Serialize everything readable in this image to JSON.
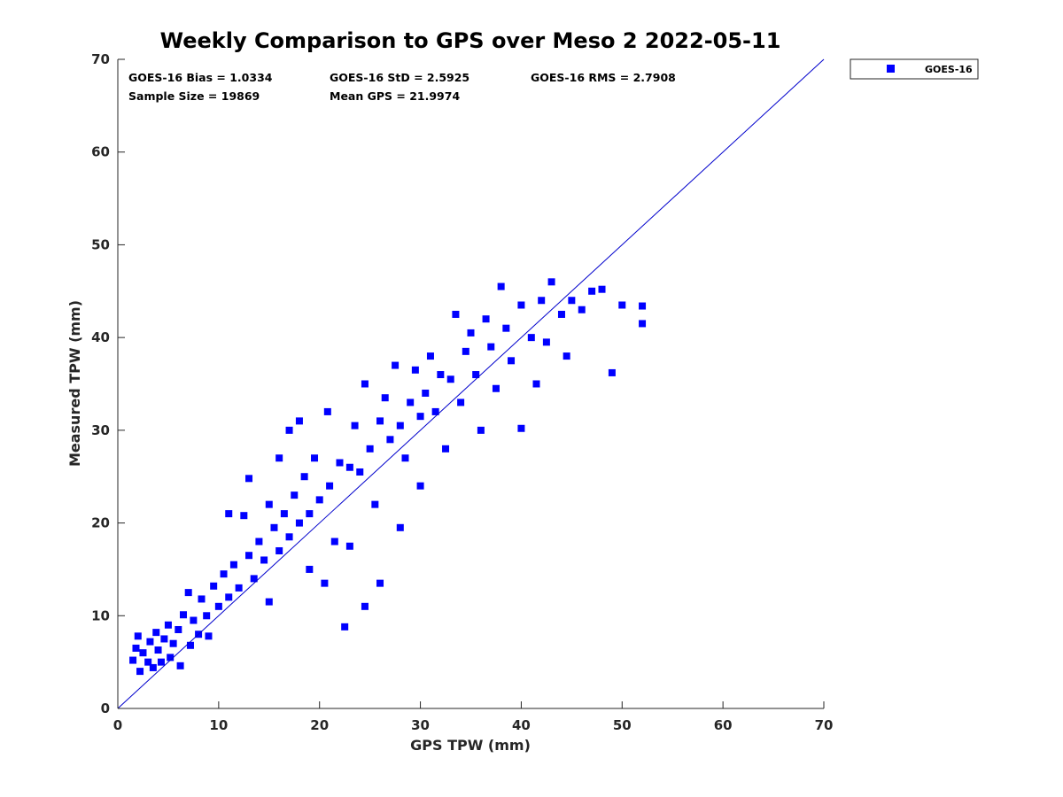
{
  "chart_data": {
    "type": "scatter",
    "title": "Weekly Comparison to GPS over Meso 2 2022-05-11",
    "xlabel": "GPS TPW (mm)",
    "ylabel": "Measured TPW (mm)",
    "xlim": [
      0,
      70
    ],
    "ylim": [
      0,
      70
    ],
    "xticks": [
      "0",
      "10",
      "20",
      "30",
      "40",
      "50",
      "60",
      "70"
    ],
    "yticks": [
      "0",
      "10",
      "20",
      "30",
      "40",
      "50",
      "60",
      "70"
    ],
    "grid": false,
    "legend_position": "top-right, outside plot area",
    "reference_line": {
      "name": "1:1 line",
      "from": [
        0,
        0
      ],
      "to": [
        70,
        70
      ],
      "color": "#0000cc"
    },
    "stats": {
      "bias": "GOES-16 Bias = 1.0334",
      "std": "GOES-16 StD = 2.5925",
      "rms": "GOES-16 RMS = 2.7908",
      "sample": "Sample Size = 19869",
      "mean": "Mean GPS = 21.9974"
    },
    "series": [
      {
        "name": "GOES-16",
        "color": "#0000ff",
        "marker": "square",
        "points": [
          [
            1.5,
            5.2
          ],
          [
            1.8,
            6.5
          ],
          [
            2.0,
            7.8
          ],
          [
            2.2,
            4.0
          ],
          [
            2.5,
            6.0
          ],
          [
            3.0,
            5.0
          ],
          [
            3.2,
            7.2
          ],
          [
            3.5,
            4.4
          ],
          [
            3.8,
            8.2
          ],
          [
            4.0,
            6.3
          ],
          [
            4.3,
            5.0
          ],
          [
            4.6,
            7.5
          ],
          [
            5.0,
            9.0
          ],
          [
            5.2,
            5.5
          ],
          [
            5.5,
            7.0
          ],
          [
            6.0,
            8.5
          ],
          [
            6.2,
            4.6
          ],
          [
            6.5,
            10.1
          ],
          [
            7.0,
            12.5
          ],
          [
            7.2,
            6.8
          ],
          [
            7.5,
            9.5
          ],
          [
            8.0,
            8.0
          ],
          [
            8.3,
            11.8
          ],
          [
            8.8,
            10.0
          ],
          [
            9.0,
            7.8
          ],
          [
            9.5,
            13.2
          ],
          [
            10.0,
            11.0
          ],
          [
            10.5,
            14.5
          ],
          [
            11.0,
            12.0
          ],
          [
            11.0,
            21.0
          ],
          [
            11.5,
            15.5
          ],
          [
            12.0,
            13.0
          ],
          [
            12.5,
            20.8
          ],
          [
            13.0,
            16.5
          ],
          [
            13.0,
            24.8
          ],
          [
            13.5,
            14.0
          ],
          [
            14.0,
            18.0
          ],
          [
            14.5,
            16.0
          ],
          [
            15.0,
            22.0
          ],
          [
            15.0,
            11.5
          ],
          [
            15.5,
            19.5
          ],
          [
            16.0,
            17.0
          ],
          [
            16.0,
            27.0
          ],
          [
            16.5,
            21.0
          ],
          [
            17.0,
            18.5
          ],
          [
            17.0,
            30.0
          ],
          [
            17.5,
            23.0
          ],
          [
            18.0,
            20.0
          ],
          [
            18.0,
            31.0
          ],
          [
            18.5,
            25.0
          ],
          [
            19.0,
            21.0
          ],
          [
            19.0,
            15.0
          ],
          [
            19.5,
            27.0
          ],
          [
            20.0,
            22.5
          ],
          [
            20.5,
            13.5
          ],
          [
            20.8,
            32.0
          ],
          [
            21.0,
            24.0
          ],
          [
            21.5,
            18.0
          ],
          [
            22.0,
            26.5
          ],
          [
            22.5,
            8.8
          ],
          [
            23.0,
            26.0
          ],
          [
            23.0,
            17.5
          ],
          [
            23.5,
            30.5
          ],
          [
            24.0,
            25.5
          ],
          [
            24.5,
            35.0
          ],
          [
            24.5,
            11.0
          ],
          [
            25.0,
            28.0
          ],
          [
            25.5,
            22.0
          ],
          [
            26.0,
            31.0
          ],
          [
            26.0,
            13.5
          ],
          [
            26.5,
            33.5
          ],
          [
            27.0,
            29.0
          ],
          [
            27.5,
            37.0
          ],
          [
            28.0,
            30.5
          ],
          [
            28.0,
            19.5
          ],
          [
            28.5,
            27.0
          ],
          [
            29.0,
            33.0
          ],
          [
            29.5,
            36.5
          ],
          [
            30.0,
            31.5
          ],
          [
            30.0,
            24.0
          ],
          [
            30.5,
            34.0
          ],
          [
            31.0,
            38.0
          ],
          [
            31.5,
            32.0
          ],
          [
            32.0,
            36.0
          ],
          [
            32.5,
            28.0
          ],
          [
            33.0,
            35.5
          ],
          [
            33.5,
            42.5
          ],
          [
            34.0,
            33.0
          ],
          [
            34.5,
            38.5
          ],
          [
            35.0,
            40.5
          ],
          [
            35.5,
            36.0
          ],
          [
            36.0,
            30.0
          ],
          [
            36.5,
            42.0
          ],
          [
            37.0,
            39.0
          ],
          [
            37.5,
            34.5
          ],
          [
            38.0,
            45.5
          ],
          [
            38.5,
            41.0
          ],
          [
            39.0,
            37.5
          ],
          [
            40.0,
            43.5
          ],
          [
            40.0,
            30.2
          ],
          [
            41.0,
            40.0
          ],
          [
            41.5,
            35.0
          ],
          [
            42.0,
            44.0
          ],
          [
            42.5,
            39.5
          ],
          [
            43.0,
            46.0
          ],
          [
            44.0,
            42.5
          ],
          [
            44.5,
            38.0
          ],
          [
            45.0,
            44.0
          ],
          [
            46.0,
            43.0
          ],
          [
            47.0,
            45.0
          ],
          [
            48.0,
            45.2
          ],
          [
            49.0,
            36.2
          ],
          [
            50.0,
            43.5
          ],
          [
            52.0,
            43.4
          ],
          [
            52.0,
            41.5
          ]
        ]
      }
    ]
  }
}
